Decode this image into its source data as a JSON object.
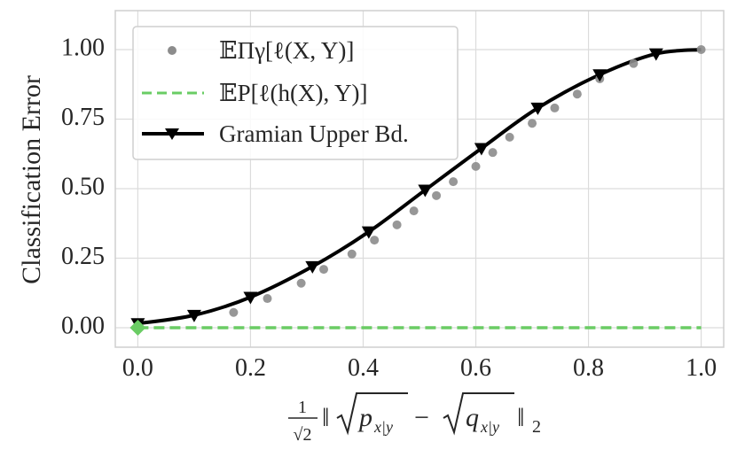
{
  "chart_data": {
    "type": "line",
    "ylabel": "Classification Error",
    "xlim": [
      -0.04,
      1.04
    ],
    "ylim": [
      -0.07,
      1.14
    ],
    "x_ticks": [
      "0.0",
      "0.2",
      "0.4",
      "0.6",
      "0.8",
      "1.0"
    ],
    "y_ticks": [
      "0.00",
      "0.25",
      "0.50",
      "0.75",
      "1.00"
    ],
    "grid": true,
    "legend": "top-left",
    "series": [
      {
        "key": "empirical",
        "marker": "circle",
        "color": "#8c8c8c",
        "points": [
          {
            "x": 0.0,
            "y": 0.0
          },
          {
            "x": 0.17,
            "y": 0.055
          },
          {
            "x": 0.23,
            "y": 0.105
          },
          {
            "x": 0.29,
            "y": 0.16
          },
          {
            "x": 0.33,
            "y": 0.21
          },
          {
            "x": 0.38,
            "y": 0.265
          },
          {
            "x": 0.42,
            "y": 0.315
          },
          {
            "x": 0.46,
            "y": 0.37
          },
          {
            "x": 0.49,
            "y": 0.42
          },
          {
            "x": 0.53,
            "y": 0.475
          },
          {
            "x": 0.56,
            "y": 0.525
          },
          {
            "x": 0.6,
            "y": 0.58
          },
          {
            "x": 0.63,
            "y": 0.63
          },
          {
            "x": 0.66,
            "y": 0.685
          },
          {
            "x": 0.7,
            "y": 0.735
          },
          {
            "x": 0.74,
            "y": 0.79
          },
          {
            "x": 0.78,
            "y": 0.84
          },
          {
            "x": 0.82,
            "y": 0.895
          },
          {
            "x": 0.88,
            "y": 0.95
          },
          {
            "x": 1.0,
            "y": 1.0
          }
        ]
      },
      {
        "key": "h_error",
        "marker": "none",
        "dash": true,
        "color": "#6acc64",
        "points": [
          {
            "x": 0.0,
            "y": 0.0
          },
          {
            "x": 1.0,
            "y": 0.0
          }
        ]
      },
      {
        "key": "gramian",
        "name": "Gramian Upper Bd.",
        "marker": "triangle-down",
        "color": "#000000",
        "points": [
          {
            "x": 0.0,
            "y": 0.015
          },
          {
            "x": 0.1,
            "y": 0.045
          },
          {
            "x": 0.2,
            "y": 0.11
          },
          {
            "x": 0.31,
            "y": 0.22
          },
          {
            "x": 0.41,
            "y": 0.345
          },
          {
            "x": 0.51,
            "y": 0.495
          },
          {
            "x": 0.61,
            "y": 0.645
          },
          {
            "x": 0.71,
            "y": 0.79
          },
          {
            "x": 0.82,
            "y": 0.91
          },
          {
            "x": 0.92,
            "y": 0.985
          },
          {
            "x": 1.0,
            "y": 1.0
          }
        ]
      }
    ],
    "highlight_point": {
      "x": 0.0,
      "y": 0.0,
      "marker": "diamond",
      "color": "#6acc64"
    }
  },
  "legend": {
    "empirical_text": "𝔼Πγ[ℓ(X, Y)]",
    "h_error_text": "𝔼P[ℓ(h(X), Y)]",
    "gramian_text": "Gramian Upper Bd."
  },
  "xlabel": {
    "frac_num": "1",
    "frac_den": "√2",
    "p_base": "p",
    "p_sub": "x|y",
    "minus": "−",
    "q_base": "q",
    "q_sub": "x|y",
    "norm_sub": "2"
  }
}
